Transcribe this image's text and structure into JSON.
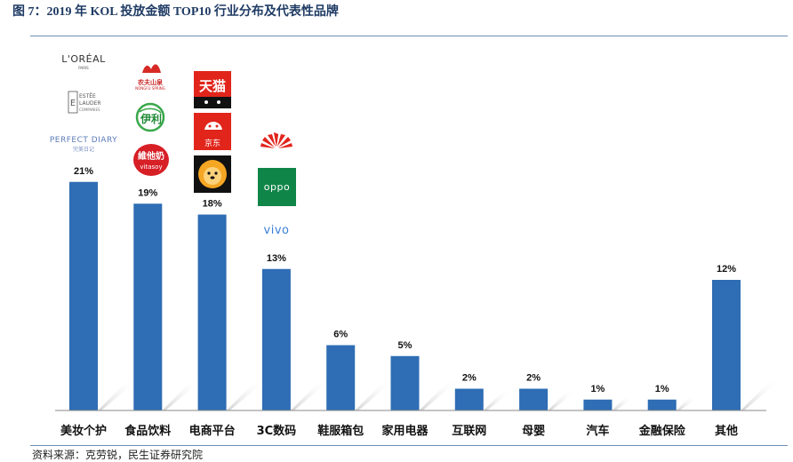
{
  "title": "图 7：2019 年 KOL 投放金额 TOP10 行业分布及代表性品牌",
  "source": "资料来源：克劳锐，民生证券研究院",
  "colors": {
    "bar": "#2f6db4",
    "title": "#1f3b64",
    "rule": "#6f8fb4"
  },
  "chart_data": {
    "type": "bar",
    "categories": [
      "美妆个护",
      "食品饮料",
      "电商平台",
      "3C数码",
      "鞋服箱包",
      "家用电器",
      "互联网",
      "母婴",
      "汽车",
      "金融保险",
      "其他"
    ],
    "values": [
      21,
      19,
      18,
      13,
      6,
      5,
      2,
      2,
      1,
      1,
      12
    ],
    "value_labels": [
      "21%",
      "19%",
      "18%",
      "13%",
      "6%",
      "5%",
      "2%",
      "2%",
      "1%",
      "1%",
      "12%"
    ],
    "unit": "%",
    "ylim": [
      0,
      25
    ],
    "grid": false,
    "legend": "none"
  },
  "brand_logos": {
    "beauty": [
      "L'ORÉAL",
      "ESTĒE LAUDER",
      "PERFECT DIARY"
    ],
    "food": [
      "农夫山泉",
      "伊利",
      "维他奶"
    ],
    "ecommerce": [
      "天猫",
      "京东",
      "苏宁"
    ],
    "digital": [
      "HUAWEI",
      "OPPO",
      "vivo"
    ]
  },
  "logo_text": {
    "loreal": "L'ORÉAL",
    "loreal_sub": "PARIS",
    "estee": "ESTĒE",
    "lauder": "LAUDER",
    "estee_sub": "COMPANIES",
    "perfect": "PERFECT DIARY",
    "perfect_cn": "完美日记",
    "nongfu": "农夫山泉",
    "nongfu_sub": "NONGFU SPRING",
    "yili": "伊利",
    "vitasoy_cn": "維他奶",
    "vitasoy": "vitasoy",
    "tmall": "天猫",
    "jd": "京东",
    "oppo": "oppo",
    "vivo": "vivo"
  }
}
